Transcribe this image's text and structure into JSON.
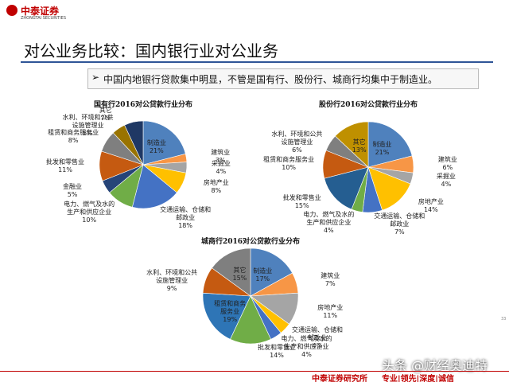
{
  "header": {
    "logo": "中泰证券",
    "logo_sub": "ZHONGTAI SECURITIES",
    "title": "对公业务比较：国内银行业对公业务",
    "bullet": "中国内地银行贷款集中明显，不管是国有行、股份行、城商行均集中于制造业。"
  },
  "chart_data": [
    {
      "type": "pie",
      "title": "国有行2016对公贷款行业分布",
      "categories": [
        "制造业",
        "建筑业",
        "采掘业",
        "房地产业",
        "交通运输、仓储和邮政业",
        "电力、燃气及水的生产和供应企业",
        "金融业",
        "批发和零售业",
        "租赁和商务服务业",
        "水利、环境和公共设施管理业",
        "其它"
      ],
      "values": [
        21,
        3,
        4,
        8,
        18,
        10,
        5,
        11,
        8,
        5,
        7
      ],
      "value_labels": [
        "21%",
        "3%",
        "4%",
        "8%",
        "18%",
        "10%",
        "5%",
        "11%",
        "8%",
        "5%",
        "7%"
      ],
      "colors": [
        "#4f81bd",
        "#f79646",
        "#a5a5a5",
        "#ffc000",
        "#4472c4",
        "#70ad47",
        "#264478",
        "#c55a11",
        "#7f7f7f",
        "#997300",
        "#1f3864"
      ]
    },
    {
      "type": "pie",
      "title": "股份行2016对公贷款行业分布",
      "categories": [
        "制造业",
        "建筑业",
        "采掘业",
        "房地产业",
        "交通运输、仓储和邮政业",
        "电力、燃气及水的生产和供应企业",
        "批发和零售业",
        "租赁和商务服务业",
        "水利、环境和公共设施管理业",
        "其它"
      ],
      "values": [
        21,
        6,
        4,
        14,
        7,
        4,
        15,
        10,
        6,
        13
      ],
      "value_labels": [
        "21%",
        "6%",
        "4%",
        "14%",
        "7%",
        "4%",
        "15%",
        "10%",
        "6%",
        "13%"
      ],
      "colors": [
        "#4f81bd",
        "#f79646",
        "#a5a5a5",
        "#ffc000",
        "#4472c4",
        "#70ad47",
        "#255e91",
        "#c55a11",
        "#7f7f7f",
        "#bf9000"
      ]
    },
    {
      "type": "pie",
      "title": "城商行2016对公贷款行业分布",
      "categories": [
        "制造业",
        "建筑业",
        "房地产业",
        "交通运输、仓储和邮政业",
        "电力、燃气及水的生产和供应企业",
        "批发和零售业",
        "租赁和商务服务业",
        "水利、环境和公共设施管理业",
        "其它"
      ],
      "values": [
        17,
        7,
        11,
        4,
        4,
        14,
        19,
        9,
        15
      ],
      "value_labels": [
        "17%",
        "7%",
        "11%",
        "4%",
        "4%",
        "14%",
        "19%",
        "9%",
        "15%"
      ],
      "colors": [
        "#4f81bd",
        "#f79646",
        "#a5a5a5",
        "#ffc000",
        "#4472c4",
        "#70ad47",
        "#2e75b6",
        "#c55a11",
        "#7f7f7f"
      ]
    }
  ],
  "footer": {
    "org": "中泰证券研究所",
    "motto": "专业|领先|深度|诚信",
    "page": "33",
    "watermark": "头条 @财经奥迪特"
  }
}
